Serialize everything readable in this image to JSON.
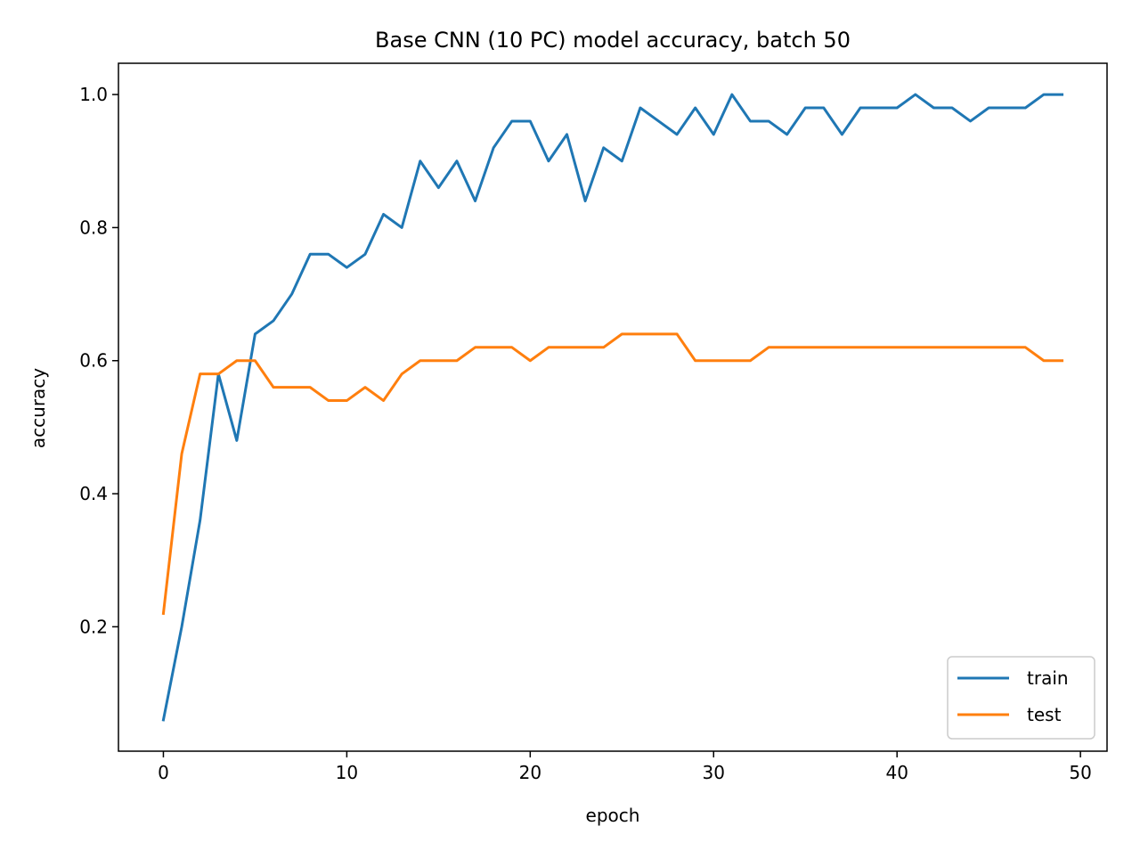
{
  "chart_data": {
    "type": "line",
    "title": "Base CNN (10 PC) model accuracy, batch 50",
    "xlabel": "epoch",
    "ylabel": "accuracy",
    "xlim": [
      -2.45,
      51.45
    ],
    "ylim": [
      0.013,
      1.047
    ],
    "xticks": [
      0,
      10,
      20,
      30,
      40,
      50
    ],
    "yticks": [
      0.2,
      0.4,
      0.6,
      0.8,
      1.0
    ],
    "xtick_labels": [
      "0",
      "10",
      "20",
      "30",
      "40",
      "50"
    ],
    "ytick_labels": [
      "0.2",
      "0.4",
      "0.6",
      "0.8",
      "1.0"
    ],
    "grid": false,
    "legend_position": "lower-right",
    "x": [
      0,
      1,
      2,
      3,
      4,
      5,
      6,
      7,
      8,
      9,
      10,
      11,
      12,
      13,
      14,
      15,
      16,
      17,
      18,
      19,
      20,
      21,
      22,
      23,
      24,
      25,
      26,
      27,
      28,
      29,
      30,
      31,
      32,
      33,
      34,
      35,
      36,
      37,
      38,
      39,
      40,
      41,
      42,
      43,
      44,
      45,
      46,
      47,
      48,
      49
    ],
    "series": [
      {
        "name": "train",
        "color": "#1f77b4",
        "values": [
          0.06,
          0.2,
          0.36,
          0.58,
          0.48,
          0.64,
          0.66,
          0.7,
          0.76,
          0.76,
          0.74,
          0.76,
          0.82,
          0.8,
          0.9,
          0.86,
          0.9,
          0.84,
          0.92,
          0.96,
          0.96,
          0.9,
          0.94,
          0.84,
          0.92,
          0.9,
          0.98,
          0.96,
          0.94,
          0.98,
          0.94,
          1.0,
          0.96,
          0.96,
          0.94,
          0.98,
          0.98,
          0.94,
          0.98,
          0.98,
          0.98,
          1.0,
          0.98,
          0.98,
          0.96,
          0.98,
          0.98,
          0.98,
          1.0,
          1.0
        ]
      },
      {
        "name": "test",
        "color": "#ff7f0e",
        "values": [
          0.22,
          0.46,
          0.58,
          0.58,
          0.6,
          0.6,
          0.56,
          0.56,
          0.56,
          0.54,
          0.54,
          0.56,
          0.54,
          0.58,
          0.6,
          0.6,
          0.6,
          0.62,
          0.62,
          0.62,
          0.6,
          0.62,
          0.62,
          0.62,
          0.62,
          0.64,
          0.64,
          0.64,
          0.64,
          0.6,
          0.6,
          0.6,
          0.6,
          0.62,
          0.62,
          0.62,
          0.62,
          0.62,
          0.62,
          0.62,
          0.62,
          0.62,
          0.62,
          0.62,
          0.62,
          0.62,
          0.62,
          0.62,
          0.6,
          0.6
        ]
      }
    ]
  }
}
